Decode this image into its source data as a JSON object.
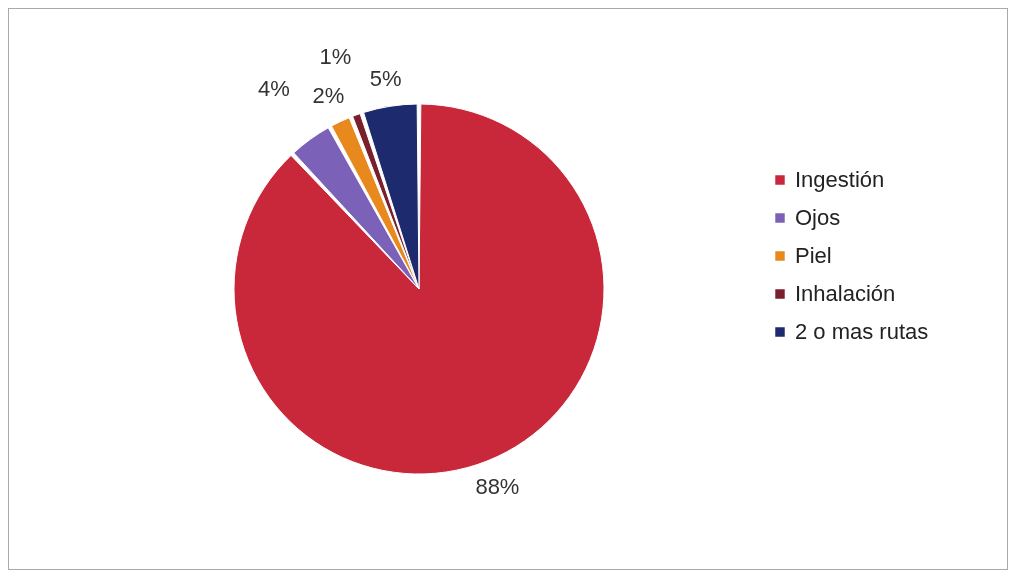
{
  "chart_data": {
    "type": "pie",
    "categories": [
      "Ingestión",
      "Ojos",
      "Piel",
      "Inhalación",
      "2 o mas rutas"
    ],
    "values": [
      88,
      4,
      2,
      1,
      5
    ],
    "colors": [
      "#c8283a",
      "#7b62b8",
      "#e8891e",
      "#7a1f2c",
      "#1d2b6e"
    ],
    "value_labels": [
      "88%",
      "4%",
      "2%",
      "1%",
      "5%"
    ],
    "legend": "right"
  }
}
